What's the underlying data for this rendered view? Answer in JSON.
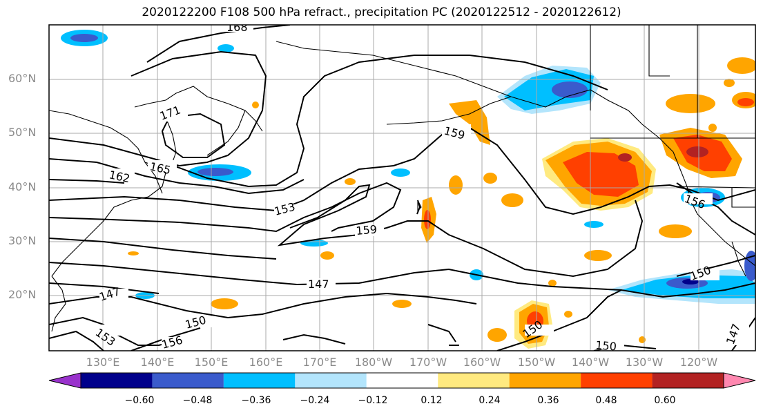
{
  "title": "2020122200 F108 500 hPa refract., precipitation PC (2020122512 - 2020122612)",
  "lat_labels": [
    "60°N",
    "50°N",
    "40°N",
    "30°N",
    "20°N"
  ],
  "lon_labels": [
    "130°E",
    "140°E",
    "150°E",
    "160°E",
    "170°E",
    "180°W",
    "170°W",
    "160°W",
    "150°W",
    "140°W",
    "130°W",
    "120°W"
  ],
  "colorbar": {
    "ticks": [
      "−0.60",
      "−0.48",
      "−0.36",
      "−0.24",
      "−0.12",
      "0.12",
      "0.24",
      "0.36",
      "0.48",
      "0.60"
    ],
    "colors": [
      "#9932cc",
      "#00008b",
      "#3a5bcc",
      "#00bfff",
      "#b3e5fc",
      "#ffffff",
      "#ffea80",
      "#ffa500",
      "#ff4000",
      "#b22222",
      "#ff88b0"
    ]
  },
  "contour_labels": [
    "168",
    "171",
    "165",
    "162",
    "159",
    "153",
    "159",
    "147",
    "147",
    "150",
    "156",
    "153",
    "156",
    "150",
    "150",
    "150",
    "147"
  ]
}
